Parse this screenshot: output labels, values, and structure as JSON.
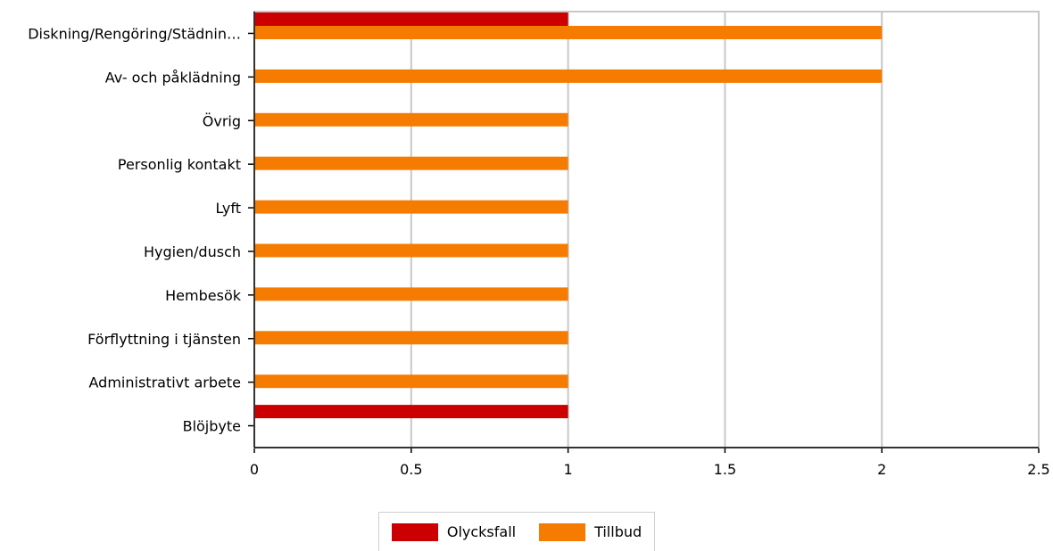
{
  "chart_data": {
    "type": "bar",
    "orientation": "horizontal",
    "categories": [
      "Diskning/Rengöring/Städnin…",
      "Av- och påklädning",
      "Övrig",
      "Personlig kontakt",
      "Lyft",
      "Hygien/dusch",
      "Hembesök",
      "Förflyttning i tjänsten",
      "Administrativt arbete",
      "Blöjbyte"
    ],
    "series": [
      {
        "name": "Olycksfall",
        "color": "#cc0000",
        "values": [
          1,
          0,
          0,
          0,
          0,
          0,
          0,
          0,
          0,
          1
        ]
      },
      {
        "name": "Tillbud",
        "color": "#f57c00",
        "values": [
          2,
          2,
          1,
          1,
          1,
          1,
          1,
          1,
          1,
          0
        ]
      }
    ],
    "xlim": [
      0,
      2.5
    ],
    "xticks": [
      "0",
      "0.5",
      "1",
      "1.5",
      "2",
      "2.5"
    ],
    "grid": true,
    "legend_position": "bottom"
  }
}
